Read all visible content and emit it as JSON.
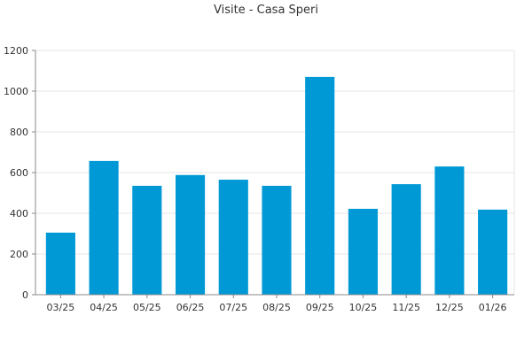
{
  "chart_data": {
    "type": "bar",
    "title": "Visite - Casa Speri",
    "xlabel": "",
    "ylabel": "",
    "categories": [
      "03/25",
      "04/25",
      "05/25",
      "06/25",
      "07/25",
      "08/25",
      "09/25",
      "10/25",
      "11/25",
      "12/25",
      "01/26"
    ],
    "values": [
      305,
      657,
      535,
      588,
      565,
      535,
      1070,
      422,
      543,
      630,
      418
    ],
    "ylim": [
      0,
      1200
    ],
    "yticks": [
      0,
      200,
      400,
      600,
      800,
      1000,
      1200
    ],
    "grid": true,
    "legend": "none"
  },
  "colors": {
    "bar": "#0099d6",
    "grid": "#e5e5e5",
    "axis": "#888888",
    "text": "#333333"
  }
}
